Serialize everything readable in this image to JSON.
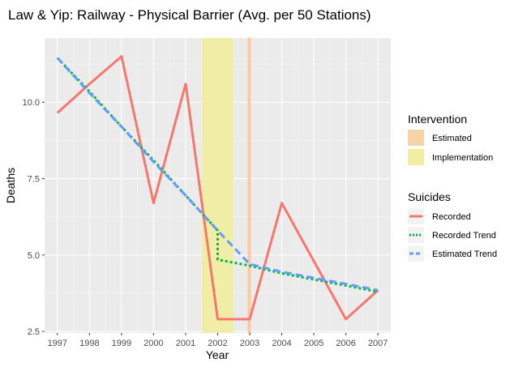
{
  "chart_data": {
    "type": "line",
    "title": "Law & Yip: Railway - Physical Barrier (Avg. per 50 Stations)",
    "xlabel": "Year",
    "ylabel": "Deaths",
    "x": [
      1997,
      1998,
      1999,
      2000,
      2001,
      2002,
      2003,
      2004,
      2005,
      2006,
      2007
    ],
    "xlim": [
      1996.6,
      2007.4
    ],
    "ylim": [
      2.45,
      12.1
    ],
    "x_ticks": [
      "1997",
      "1998",
      "1999",
      "2000",
      "2001",
      "2002",
      "2003",
      "2004",
      "2005",
      "2006",
      "2007"
    ],
    "y_ticks": [
      {
        "value": 2.5,
        "label": "2.5"
      },
      {
        "value": 5.0,
        "label": "5.0"
      },
      {
        "value": 7.5,
        "label": "7.5"
      },
      {
        "value": 10.0,
        "label": "10.0"
      }
    ],
    "grid": true,
    "intervention_title": "Intervention",
    "interventions": [
      {
        "name": "Estimated",
        "start": 2002.95,
        "end": 2003.02,
        "color": "#f6d2a9",
        "edge": "#f3b77a"
      },
      {
        "name": "Implementation",
        "start": 2001.5,
        "end": 2002.5,
        "color": "#f0ee9f"
      }
    ],
    "suicides_title": "Suicides",
    "series": [
      {
        "name": "Recorded",
        "color": "#f8766d",
        "dash": "solid",
        "points": [
          [
            1997,
            9.65
          ],
          [
            1998,
            10.6
          ],
          [
            1999,
            11.5
          ],
          [
            2000,
            6.7
          ],
          [
            2001,
            10.6
          ],
          [
            2002,
            2.9
          ],
          [
            2003,
            2.9
          ],
          [
            2004,
            6.7
          ],
          [
            2005,
            4.8
          ],
          [
            2006,
            2.9
          ],
          [
            2007,
            3.85
          ]
        ]
      },
      {
        "name": "Recorded Trend",
        "color": "#00ba38",
        "dash": "dotted",
        "points": [
          [
            1997,
            11.45
          ],
          [
            1998,
            10.35
          ],
          [
            1999,
            9.2
          ],
          [
            2000,
            8.1
          ],
          [
            2001,
            6.95
          ],
          [
            2002,
            5.8
          ],
          [
            2002,
            4.85
          ],
          [
            2003,
            4.65
          ],
          [
            2004,
            4.4
          ],
          [
            2005,
            4.2
          ],
          [
            2006,
            4.0
          ],
          [
            2007,
            3.8
          ]
        ]
      },
      {
        "name": "Estimated Trend",
        "color": "#619cff",
        "dash": "dashed",
        "points": [
          [
            1997,
            11.45
          ],
          [
            1998,
            10.3
          ],
          [
            1999,
            9.2
          ],
          [
            2000,
            8.05
          ],
          [
            2001,
            6.95
          ],
          [
            2002,
            5.8
          ],
          [
            2003,
            4.7
          ],
          [
            2004,
            4.45
          ],
          [
            2005,
            4.25
          ],
          [
            2006,
            4.05
          ],
          [
            2007,
            3.85
          ]
        ]
      }
    ]
  }
}
